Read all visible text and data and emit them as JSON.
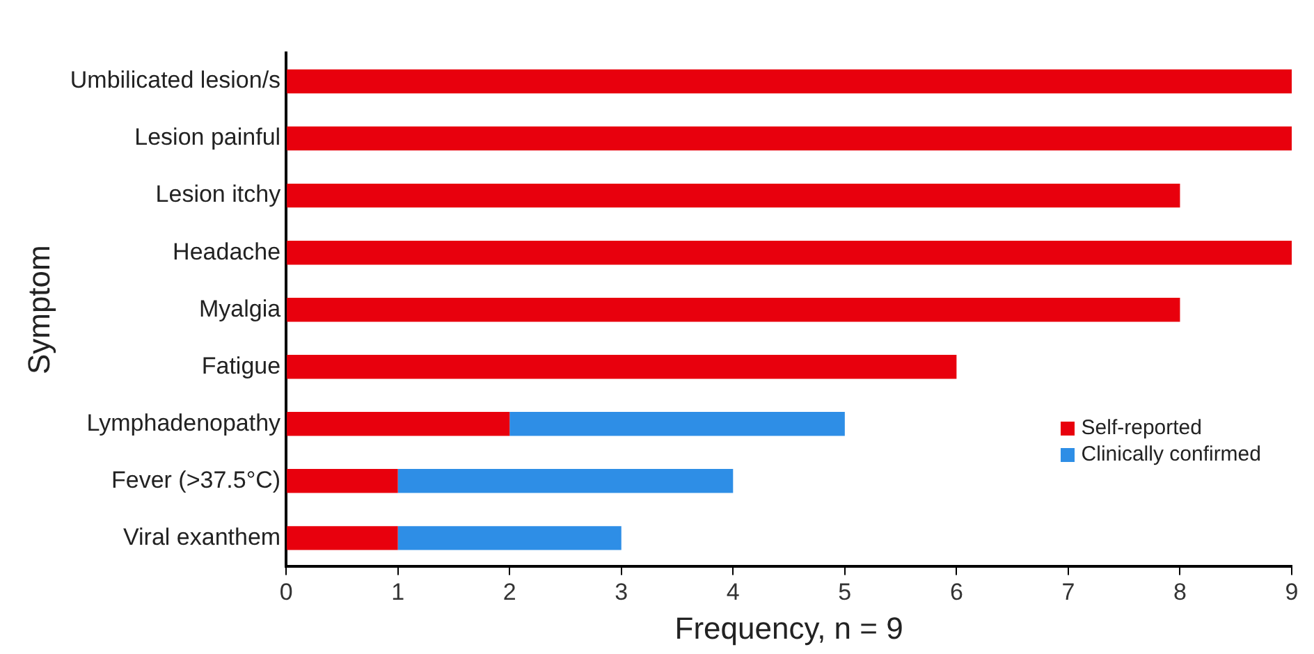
{
  "chart_data": {
    "type": "bar",
    "orientation": "horizontal",
    "stacked": true,
    "xlabel": "Frequency, n = 9",
    "ylabel": "Symptom",
    "categories": [
      "Umbilicated lesion/s",
      "Lesion painful",
      "Lesion itchy",
      "Headache",
      "Myalgia",
      "Fatigue",
      "Lymphadenopathy",
      "Fever (>37.5°C)",
      "Viral exanthem"
    ],
    "series": [
      {
        "name": "Self-reported",
        "color": "#e8000d",
        "values": [
          9,
          9,
          8,
          9,
          8,
          6,
          2,
          1,
          1
        ]
      },
      {
        "name": "Clinically confirmed",
        "color": "#2e8ee6",
        "values": [
          0,
          0,
          0,
          0,
          0,
          0,
          3,
          3,
          2
        ]
      }
    ],
    "xlim": [
      0,
      9
    ],
    "xticks": [
      0,
      1,
      2,
      3,
      4,
      5,
      6,
      7,
      8,
      9
    ],
    "grid": false,
    "legend": "right"
  }
}
